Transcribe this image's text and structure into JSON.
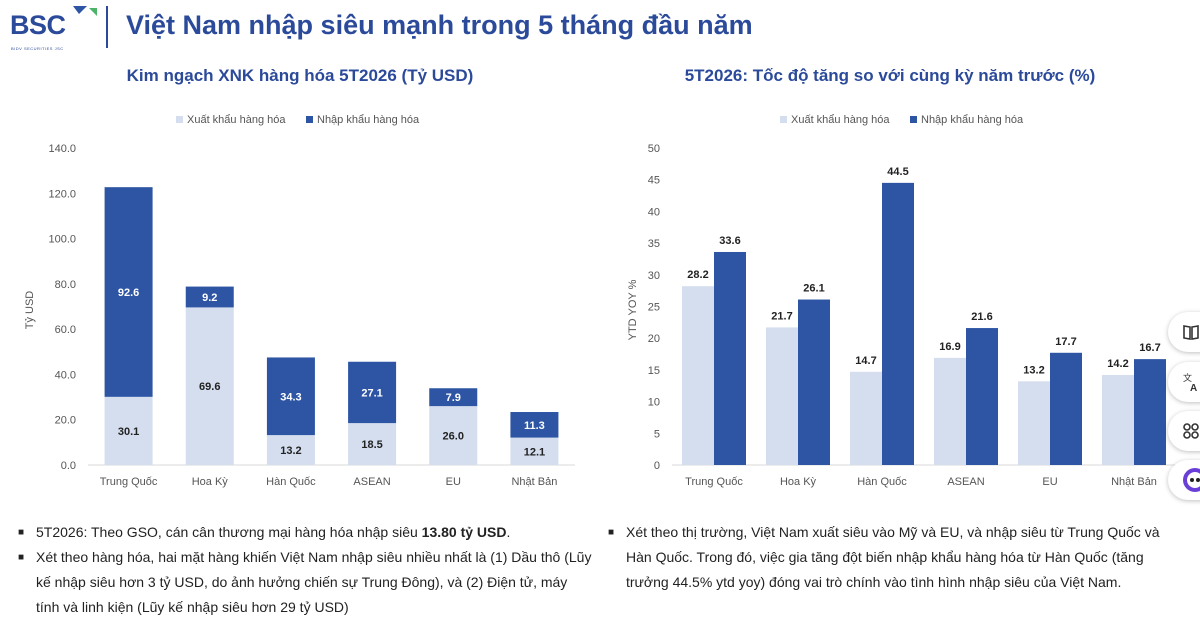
{
  "header": {
    "logo_text": "BSC",
    "logo_subtext": "BIDV SECURITIES JSC",
    "title": "Việt Nam nhập siêu mạnh trong 5 tháng đầu năm"
  },
  "colors": {
    "export": "#d4deef",
    "import": "#2e55a4",
    "title": "#2b4a9a"
  },
  "chart_data": [
    {
      "type": "bar",
      "stacked": true,
      "title": "Kim ngạch XNK hàng hóa 5T2026 (Tỷ USD)",
      "ylabel": "Tỷ USD",
      "ylim": [
        0,
        140
      ],
      "yticks": [
        "0.0",
        "20.0",
        "40.0",
        "60.0",
        "80.0",
        "100.0",
        "120.0",
        "140.0"
      ],
      "categories": [
        "Trung Quốc",
        "Hoa Kỳ",
        "Hàn Quốc",
        "ASEAN",
        "EU",
        "Nhật Bản"
      ],
      "series": [
        {
          "name": "Xuất khẩu hàng hóa",
          "values": [
            30.1,
            69.6,
            13.2,
            18.5,
            26.0,
            12.1
          ],
          "labels": [
            "30.1",
            "69.6",
            "13.2",
            "18.5",
            "26.0",
            "12.1"
          ]
        },
        {
          "name": "Nhập khẩu hàng hóa",
          "values": [
            92.6,
            9.2,
            34.3,
            27.1,
            7.9,
            11.3
          ],
          "labels": [
            "92.6",
            "9.2",
            "34.3",
            "27.1",
            "7.9",
            "11.3"
          ]
        }
      ],
      "legend": "top"
    },
    {
      "type": "bar",
      "stacked": false,
      "title": "5T2026: Tốc độ tăng so với cùng kỳ năm trước (%)",
      "ylabel": "YTD YOY %",
      "ylim": [
        0,
        50
      ],
      "yticks": [
        "0",
        "5",
        "10",
        "15",
        "20",
        "25",
        "30",
        "35",
        "40",
        "45",
        "50"
      ],
      "categories": [
        "Trung Quốc",
        "Hoa Kỳ",
        "Hàn Quốc",
        "ASEAN",
        "EU",
        "Nhật Bản"
      ],
      "series": [
        {
          "name": "Xuất khẩu hàng hóa",
          "values": [
            28.2,
            21.7,
            14.7,
            16.9,
            13.2,
            14.2
          ],
          "labels": [
            "28.2",
            "21.7",
            "14.7",
            "16.9",
            "13.2",
            "14.2"
          ]
        },
        {
          "name": "Nhập khẩu hàng hóa",
          "values": [
            33.6,
            26.1,
            44.5,
            21.6,
            17.7,
            16.7
          ],
          "labels": [
            "33.6",
            "26.1",
            "44.5",
            "21.6",
            "17.7",
            "16.7"
          ]
        }
      ],
      "legend": "top"
    }
  ],
  "notes_left": [
    {
      "text": "5T2026: Theo GSO, cán cân thương mại hàng hóa nhập siêu ",
      "bold": "13.80 tỷ USD",
      "after": "."
    },
    {
      "text": "Xét theo hàng hóa, hai mặt hàng khiến Việt Nam nhập siêu nhiều nhất là (1) Dầu thô (Lũy kế nhập siêu hơn 3 tỷ USD, do ảnh hưởng chiến sự Trung Đông), và (2) Điện tử, máy tính và linh kiện (Lũy kế nhập siêu hơn 29 tỷ USD)"
    }
  ],
  "notes_right": [
    {
      "text": "Xét theo thị trường, Việt Nam xuất siêu vào Mỹ và EU, và nhập siêu từ Trung Quốc và Hàn Quốc. Trong đó, việc gia tăng đột biến nhập khẩu hàng hóa từ Hàn Quốc (tăng trưởng 44.5% ytd yoy) đóng vai trò chính vào tình hình nhập siêu của Việt Nam."
    }
  ],
  "side_toolbar": [
    "book-icon",
    "translate-icon",
    "apps-icon",
    "assistant-icon"
  ]
}
